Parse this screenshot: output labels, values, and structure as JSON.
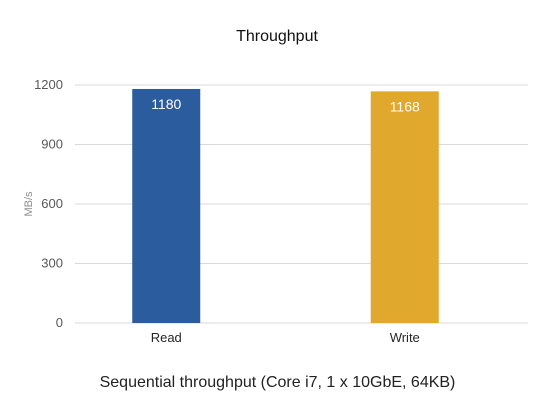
{
  "chart_data": {
    "type": "bar",
    "title": "Throughput",
    "categories": [
      "Read",
      "Write"
    ],
    "values": [
      1180,
      1168
    ],
    "colors": [
      "#2b5c9e",
      "#e0a82c"
    ],
    "ylabel": "MB/s",
    "xlabel": "",
    "ylim": [
      0,
      1200
    ],
    "yticks": [
      0,
      300,
      600,
      900,
      1200
    ],
    "grid": true,
    "data_labels": true
  },
  "caption": "Sequential throughput (Core i7, 1 x 10GbE, 64KB)"
}
